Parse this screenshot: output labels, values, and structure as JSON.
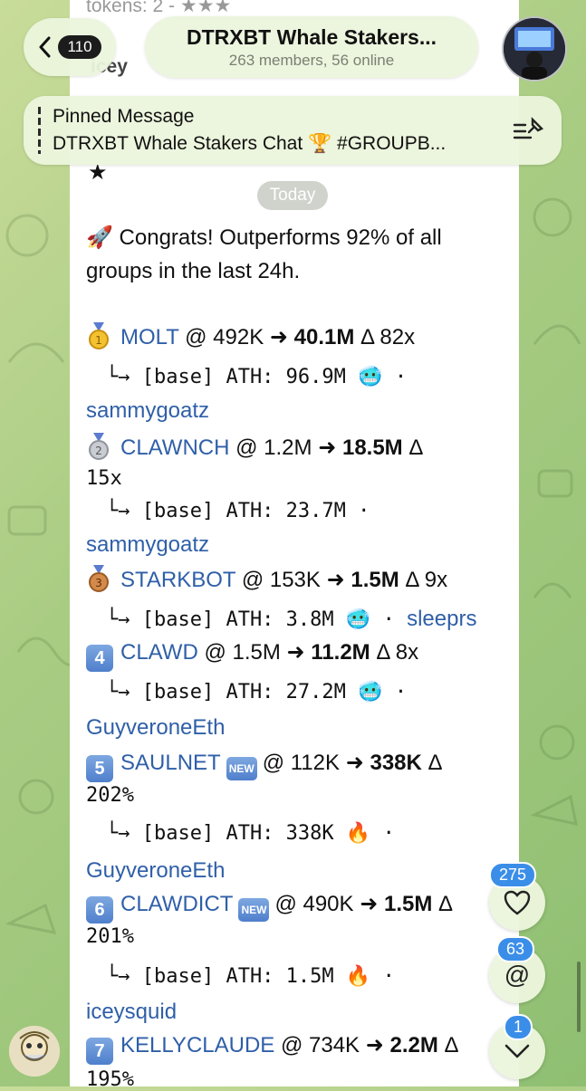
{
  "header": {
    "back_count": "110",
    "title": "DTRXBT Whale Stakers...",
    "subtitle": "263 members, 56 online"
  },
  "pinned": {
    "title": "Pinned Message",
    "text": "DTRXBT Whale Stakers Chat 🏆 #GROUPB..."
  },
  "behind": {
    "line1": "tokens: 2 - ★★★",
    "line2": "icey",
    "star": "★"
  },
  "date_chip": "Today",
  "message": {
    "intro1": "🚀 Congrats! Outperforms 92% of all",
    "intro2": "groups in the last 24h.",
    "entries": [
      {
        "rank": "1",
        "name": "MOLT",
        "from": "@ 492K",
        "to": "40.1M",
        "delta": "Δ 82x",
        "delta_wrap": "",
        "ath": "└→ [base] ATH: 96.9M",
        "emoji": "🥶",
        "dot": "·",
        "user": "sammygoatz"
      },
      {
        "rank": "2",
        "name": "CLAWNCH",
        "from": "@ 1.2M",
        "to": "18.5M",
        "delta": "Δ",
        "delta_wrap": "15x",
        "ath": "└→ [base] ATH: 23.7M",
        "emoji": "",
        "dot": "·",
        "user": "sammygoatz"
      },
      {
        "rank": "3",
        "name": "STARKBOT",
        "from": "@ 153K",
        "to": "1.5M",
        "delta": "Δ 9x",
        "delta_wrap": "",
        "ath": "└→ [base] ATH: 3.8M",
        "emoji": "🥶",
        "dot": "·",
        "user": "sleeprs"
      },
      {
        "rank": "4",
        "name": "CLAWD",
        "from": "@ 1.5M",
        "to": "11.2M",
        "delta": "Δ 8x",
        "delta_wrap": "",
        "ath": "└→ [base] ATH: 27.2M",
        "emoji": "🥶",
        "dot": "·",
        "user": "GuyveroneEth"
      },
      {
        "rank": "5",
        "name": "SAULNET",
        "new": "NEW",
        "from": "@ 112K",
        "to": "338K",
        "delta": "Δ",
        "delta_wrap": "202%",
        "ath": "└→ [base] ATH: 338K",
        "emoji": "🔥",
        "dot": "·",
        "user": "GuyveroneEth"
      },
      {
        "rank": "6",
        "name": "CLAWDICT",
        "new": "NEW",
        "from": "@ 490K",
        "to": "1.5M",
        "delta": "Δ",
        "delta_wrap": "201%",
        "ath": "└→ [base] ATH: 1.5M",
        "emoji": "🔥",
        "dot": "·",
        "user": "iceysquid"
      },
      {
        "rank": "7",
        "name": "KELLYCLAUDE",
        "from": "@ 734K",
        "to": "2.2M",
        "delta": "Δ",
        "delta_wrap": "195%"
      }
    ]
  },
  "fabs": {
    "reactions_count": "275",
    "mentions_count": "63",
    "down_count": "1",
    "mention_symbol": "@"
  },
  "colors": {
    "link": "#2f5fa8",
    "badge_blue": "#3b8ee8",
    "bubble": "#ffffff"
  },
  "icons": [
    "back-chevron-icon",
    "pin-list-icon",
    "heart-icon",
    "at-icon",
    "chevron-down-icon"
  ]
}
